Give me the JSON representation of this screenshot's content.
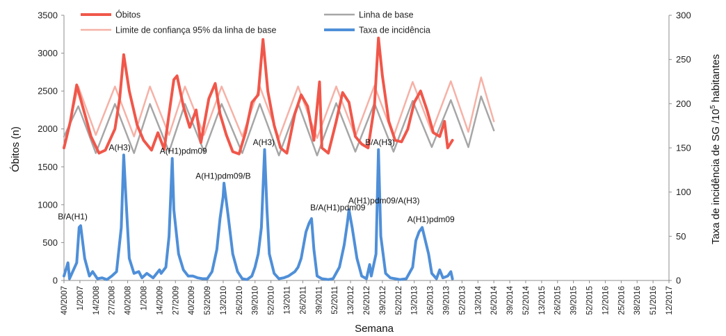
{
  "chart_data": {
    "type": "line",
    "xlabel": "Semana",
    "ylabel_left": "Óbitos (n)",
    "ylabel_right_prefix": "Taxa de incidência de SG /10",
    "ylabel_right_sup": "5",
    "ylabel_right_suffix": " habitantes",
    "ylim_left": [
      0,
      3500
    ],
    "ylim_right": [
      0,
      300
    ],
    "yticks_left": [
      "0",
      "500",
      "1000",
      "1500",
      "2000",
      "2500",
      "3000",
      "3500"
    ],
    "yticks_right": [
      "0",
      "50",
      "100",
      "150",
      "200",
      "250",
      "300"
    ],
    "xticks": [
      "40/2007",
      "1/2007",
      "14/2008",
      "27/2008",
      "40/2008",
      "1/2008",
      "14/2009",
      "27/2009",
      "40/2009",
      "53/2009",
      "13/2010",
      "26/2010",
      "39/2010",
      "52/2010",
      "13/2011",
      "26/2011",
      "39/2011",
      "52/2011",
      "13/2012",
      "26/2012",
      "39/2012",
      "52/2012",
      "13/2013",
      "26/2013",
      "39/2013",
      "52/2013",
      "13/2014",
      "26/2014",
      "39/2014",
      "52/2014",
      "13/2015",
      "26/2015",
      "39/2015",
      "52/2015",
      "12/2016",
      "25/2016",
      "38/2016",
      "51/2016",
      "12/2017"
    ],
    "legend": [
      {
        "label": "Óbitos",
        "color": "#f0574a",
        "width": 4
      },
      {
        "label": "Linha de base",
        "color": "#a6a6a6",
        "width": 2.5
      },
      {
        "label": "Limite de confiança 95% da linha de base",
        "color": "#f6b1a6",
        "width": 2.5
      },
      {
        "label": "Taxa de incidência",
        "color": "#4f8fd8",
        "width": 4
      }
    ],
    "legend_position": "top",
    "series": [
      {
        "name": "Óbitos",
        "axis": "left",
        "color": "#f0574a",
        "points": [
          [
            0,
            1750
          ],
          [
            0.4,
            2100
          ],
          [
            0.8,
            2580
          ],
          [
            1.3,
            2200
          ],
          [
            1.7,
            1900
          ],
          [
            2.2,
            1680
          ],
          [
            2.6,
            1720
          ],
          [
            3.2,
            2000
          ],
          [
            3.5,
            2400
          ],
          [
            3.75,
            2980
          ],
          [
            4.1,
            2500
          ],
          [
            4.6,
            2050
          ],
          [
            5.0,
            1850
          ],
          [
            5.5,
            1720
          ],
          [
            5.9,
            1950
          ],
          [
            6.3,
            1730
          ],
          [
            6.6,
            2200
          ],
          [
            6.9,
            2650
          ],
          [
            7.1,
            2700
          ],
          [
            7.5,
            2300
          ],
          [
            7.9,
            2020
          ],
          [
            8.3,
            2250
          ],
          [
            8.6,
            1820
          ],
          [
            9.1,
            2400
          ],
          [
            9.5,
            2600
          ],
          [
            9.8,
            2200
          ],
          [
            10.2,
            1920
          ],
          [
            10.6,
            1700
          ],
          [
            11.0,
            1670
          ],
          [
            11.4,
            1950
          ],
          [
            11.8,
            2350
          ],
          [
            12.2,
            2450
          ],
          [
            12.5,
            3180
          ],
          [
            12.8,
            2500
          ],
          [
            13.2,
            2050
          ],
          [
            13.6,
            1750
          ],
          [
            14.0,
            1680
          ],
          [
            14.5,
            2200
          ],
          [
            14.9,
            2450
          ],
          [
            15.3,
            2300
          ],
          [
            15.7,
            1850
          ],
          [
            16.05,
            2620
          ],
          [
            16.2,
            1750
          ],
          [
            16.6,
            1680
          ],
          [
            17.1,
            2100
          ],
          [
            17.5,
            2480
          ],
          [
            17.9,
            2350
          ],
          [
            18.3,
            1900
          ],
          [
            18.7,
            1800
          ],
          [
            19.1,
            1750
          ],
          [
            19.5,
            2300
          ],
          [
            19.75,
            3200
          ],
          [
            20.0,
            2700
          ],
          [
            20.4,
            2100
          ],
          [
            20.8,
            1850
          ],
          [
            21.2,
            1830
          ],
          [
            21.6,
            2000
          ],
          [
            22.0,
            2350
          ],
          [
            22.4,
            2500
          ],
          [
            22.8,
            2250
          ],
          [
            23.2,
            1950
          ],
          [
            23.6,
            1900
          ],
          [
            23.9,
            2100
          ],
          [
            24.1,
            1750
          ],
          [
            24.4,
            1850
          ]
        ]
      },
      {
        "name": "Linha de base",
        "axis": "left",
        "color": "#a6a6a6",
        "points": [
          [
            0,
            1900
          ],
          [
            0.9,
            2300
          ],
          [
            2.0,
            1680
          ],
          [
            3.2,
            2330
          ],
          [
            4.4,
            1680
          ],
          [
            5.4,
            2330
          ],
          [
            6.6,
            1700
          ],
          [
            7.6,
            2330
          ],
          [
            8.8,
            1700
          ],
          [
            9.9,
            2330
          ],
          [
            11.2,
            1680
          ],
          [
            12.3,
            2330
          ],
          [
            13.5,
            1650
          ],
          [
            14.7,
            2340
          ],
          [
            15.9,
            1650
          ],
          [
            17.1,
            2340
          ],
          [
            18.3,
            1700
          ],
          [
            19.5,
            2340
          ],
          [
            20.7,
            1700
          ],
          [
            21.9,
            2370
          ],
          [
            23.1,
            1760
          ],
          [
            24.3,
            2380
          ],
          [
            25.4,
            1760
          ],
          [
            26.2,
            2430
          ],
          [
            27.0,
            1980
          ]
        ]
      },
      {
        "name": "Limite de confiança 95% da linha de base",
        "axis": "left",
        "color": "#f6b1a6",
        "points": [
          [
            0,
            1750
          ],
          [
            0.9,
            2560
          ],
          [
            2.0,
            1920
          ],
          [
            3.2,
            2560
          ],
          [
            4.4,
            1900
          ],
          [
            5.4,
            2560
          ],
          [
            6.6,
            1920
          ],
          [
            7.6,
            2560
          ],
          [
            8.8,
            1920
          ],
          [
            9.9,
            2560
          ],
          [
            11.2,
            1900
          ],
          [
            12.3,
            2560
          ],
          [
            13.5,
            1880
          ],
          [
            14.7,
            2560
          ],
          [
            15.9,
            1880
          ],
          [
            17.1,
            2560
          ],
          [
            18.3,
            1900
          ],
          [
            19.5,
            2570
          ],
          [
            20.7,
            1900
          ],
          [
            21.9,
            2620
          ],
          [
            23.1,
            1960
          ],
          [
            24.3,
            2630
          ],
          [
            25.4,
            1960
          ],
          [
            26.2,
            2680
          ],
          [
            27.0,
            2100
          ]
        ]
      },
      {
        "name": "Taxa de incidência",
        "axis": "right",
        "color": "#4f8fd8",
        "points": [
          [
            0,
            5
          ],
          [
            0.25,
            20
          ],
          [
            0.35,
            2
          ],
          [
            0.5,
            8
          ],
          [
            0.8,
            20
          ],
          [
            0.95,
            60
          ],
          [
            1.05,
            62
          ],
          [
            1.3,
            25
          ],
          [
            1.6,
            5
          ],
          [
            1.8,
            10
          ],
          [
            2.1,
            2
          ],
          [
            2.4,
            3
          ],
          [
            2.7,
            1
          ],
          [
            3.0,
            5
          ],
          [
            3.3,
            10
          ],
          [
            3.6,
            60
          ],
          [
            3.75,
            142
          ],
          [
            3.9,
            90
          ],
          [
            4.1,
            25
          ],
          [
            4.4,
            8
          ],
          [
            4.7,
            10
          ],
          [
            4.9,
            3
          ],
          [
            5.2,
            8
          ],
          [
            5.6,
            3
          ],
          [
            6.0,
            12
          ],
          [
            6.1,
            8
          ],
          [
            6.4,
            15
          ],
          [
            6.6,
            50
          ],
          [
            6.8,
            138
          ],
          [
            6.9,
            80
          ],
          [
            7.2,
            30
          ],
          [
            7.5,
            12
          ],
          [
            7.8,
            5
          ],
          [
            8.1,
            5
          ],
          [
            8.4,
            3
          ],
          [
            8.7,
            2
          ],
          [
            9.0,
            2
          ],
          [
            9.3,
            10
          ],
          [
            9.6,
            35
          ],
          [
            9.8,
            70
          ],
          [
            10.0,
            95
          ],
          [
            10.05,
            110
          ],
          [
            10.3,
            75
          ],
          [
            10.6,
            30
          ],
          [
            10.9,
            10
          ],
          [
            11.2,
            2
          ],
          [
            11.5,
            1
          ],
          [
            11.8,
            5
          ],
          [
            12.0,
            15
          ],
          [
            12.2,
            30
          ],
          [
            12.4,
            60
          ],
          [
            12.6,
            148
          ],
          [
            12.75,
            80
          ],
          [
            12.9,
            30
          ],
          [
            13.2,
            8
          ],
          [
            13.5,
            2
          ],
          [
            13.8,
            3
          ],
          [
            14.1,
            5
          ],
          [
            14.5,
            10
          ],
          [
            14.7,
            15
          ],
          [
            14.9,
            25
          ],
          [
            15.2,
            55
          ],
          [
            15.4,
            65
          ],
          [
            15.55,
            70
          ],
          [
            15.7,
            35
          ],
          [
            15.9,
            5
          ],
          [
            16.2,
            2
          ],
          [
            16.6,
            1
          ],
          [
            16.9,
            2
          ],
          [
            17.3,
            15
          ],
          [
            17.6,
            40
          ],
          [
            17.8,
            65
          ],
          [
            17.9,
            80
          ],
          [
            18.1,
            60
          ],
          [
            18.4,
            25
          ],
          [
            18.7,
            5
          ],
          [
            19.0,
            2
          ],
          [
            19.2,
            18
          ],
          [
            19.3,
            5
          ],
          [
            19.6,
            30
          ],
          [
            19.75,
            148
          ],
          [
            19.9,
            50
          ],
          [
            20.2,
            8
          ],
          [
            20.5,
            3
          ],
          [
            20.8,
            2
          ],
          [
            21.1,
            1
          ],
          [
            21.5,
            2
          ],
          [
            21.9,
            15
          ],
          [
            22.1,
            45
          ],
          [
            22.3,
            55
          ],
          [
            22.5,
            60
          ],
          [
            22.7,
            45
          ],
          [
            22.9,
            30
          ],
          [
            23.1,
            8
          ],
          [
            23.4,
            2
          ],
          [
            23.6,
            12
          ],
          [
            23.8,
            3
          ],
          [
            24.1,
            5
          ],
          [
            24.3,
            10
          ],
          [
            24.4,
            2
          ]
        ]
      }
    ],
    "annotations": [
      {
        "text": "B/A(H1)",
        "axis": "right",
        "x": 0.55,
        "y": 66
      },
      {
        "text": "A(H3)",
        "axis": "right",
        "x": 3.5,
        "y": 144
      },
      {
        "text": "A(H1)pdm09",
        "axis": "right",
        "x": 7.5,
        "y": 140
      },
      {
        "text": "A(H1)pdm09/B",
        "axis": "right",
        "x": 10.0,
        "y": 112
      },
      {
        "text": "A(H3)",
        "axis": "right",
        "x": 12.55,
        "y": 150
      },
      {
        "text": "B/A(H1)pdm09",
        "axis": "right",
        "x": 17.2,
        "y": 76
      },
      {
        "text": "A(H1)pdm09/A(H3)",
        "axis": "right",
        "x": 20.1,
        "y": 84
      },
      {
        "text": "B/A(H3)",
        "axis": "right",
        "x": 19.85,
        "y": 150
      },
      {
        "text": "A(H1)pdm09",
        "axis": "right",
        "x": 23.05,
        "y": 63
      }
    ],
    "grid": false
  }
}
